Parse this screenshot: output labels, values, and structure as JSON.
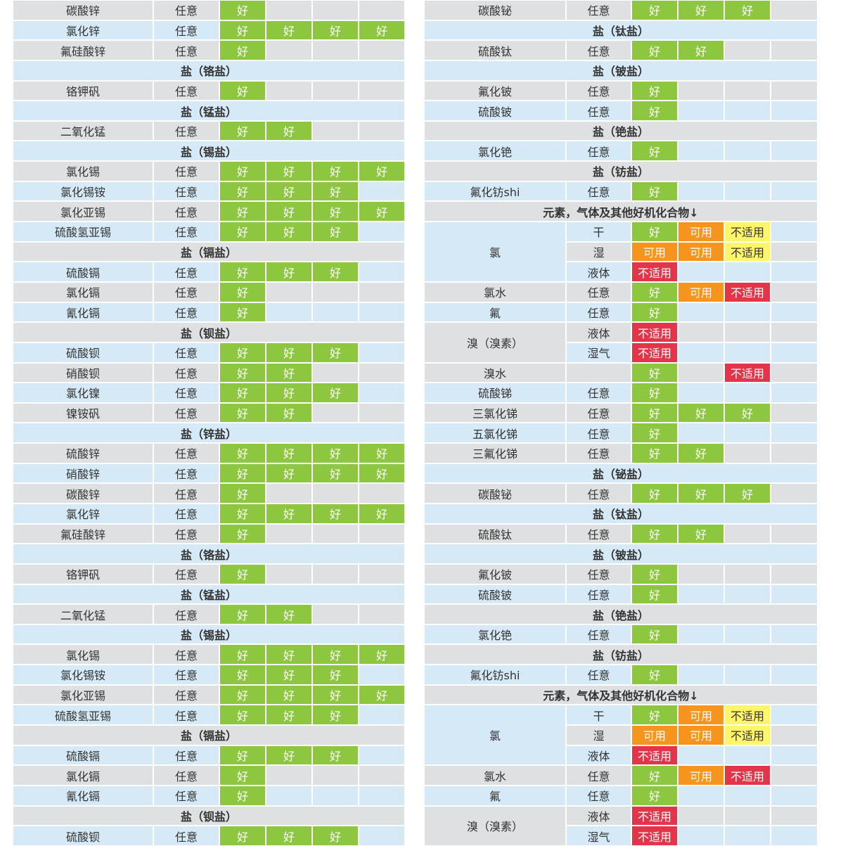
{
  "left": {
    "rows": [
      {
        "name": "碳酸锌",
        "conc": "任意",
        "ratings": [
          [
            "好",
            "#8dc63f"
          ]
        ]
      },
      {
        "name": "氯化锌",
        "conc": "任意",
        "ratings": [
          [
            "好",
            "#8dc63f"
          ],
          [
            "好",
            "#8dc63f"
          ],
          [
            "好",
            "#8dc63f"
          ],
          [
            "好",
            "#8dc63f"
          ]
        ]
      },
      {
        "name": "氟硅酸锌",
        "conc": "任意",
        "ratings": [
          [
            "好",
            "#8dc63f"
          ]
        ]
      },
      {
        "header": "盐（铬盐）"
      },
      {
        "name": "铬钾矾",
        "conc": "任意",
        "ratings": [
          [
            "好",
            "#8dc63f"
          ]
        ]
      },
      {
        "header": "盐（锰盐）"
      },
      {
        "name": "二氧化锰",
        "conc": "任意",
        "ratings": [
          [
            "好",
            "#8dc63f"
          ],
          [
            "好",
            "#8dc63f"
          ]
        ]
      },
      {
        "header": "盐（锡盐）"
      },
      {
        "name": "氯化锡",
        "conc": "任意",
        "ratings": [
          [
            "好",
            "#8dc63f"
          ],
          [
            "好",
            "#8dc63f"
          ],
          [
            "好",
            "#8dc63f"
          ],
          [
            "好",
            "#8dc63f"
          ]
        ]
      },
      {
        "name": "氯化锡铵",
        "conc": "任意",
        "ratings": [
          [
            "好",
            "#8dc63f"
          ],
          [
            "好",
            "#8dc63f"
          ],
          [
            "好",
            "#8dc63f"
          ]
        ]
      },
      {
        "name": "氯化亚锡",
        "conc": "任意",
        "ratings": [
          [
            "好",
            "#8dc63f"
          ],
          [
            "好",
            "#8dc63f"
          ],
          [
            "好",
            "#8dc63f"
          ],
          [
            "好",
            "#8dc63f"
          ]
        ]
      },
      {
        "name": "硫酸氢亚锡",
        "conc": "任意",
        "ratings": [
          [
            "好",
            "#8dc63f"
          ],
          [
            "好",
            "#8dc63f"
          ],
          [
            "好",
            "#8dc63f"
          ]
        ]
      },
      {
        "header": "盐（镉盐）"
      },
      {
        "name": "硫酸镉",
        "conc": "任意",
        "ratings": [
          [
            "好",
            "#8dc63f"
          ],
          [
            "好",
            "#8dc63f"
          ],
          [
            "好",
            "#8dc63f"
          ]
        ]
      },
      {
        "name": "氯化镉",
        "conc": "任意",
        "ratings": [
          [
            "好",
            "#8dc63f"
          ]
        ]
      },
      {
        "name": "氰化镉",
        "conc": "任意",
        "ratings": [
          [
            "好",
            "#8dc63f"
          ]
        ]
      },
      {
        "header": "盐（钡盐）"
      },
      {
        "name": "硫酸钡",
        "conc": "任意",
        "ratings": [
          [
            "好",
            "#8dc63f"
          ],
          [
            "好",
            "#8dc63f"
          ],
          [
            "好",
            "#8dc63f"
          ]
        ]
      },
      {
        "name": "硝酸钡",
        "conc": "任意",
        "ratings": [
          [
            "好",
            "#8dc63f"
          ],
          [
            "好",
            "#8dc63f"
          ]
        ]
      },
      {
        "name": "氯化镍",
        "conc": "任意",
        "ratings": [
          [
            "好",
            "#8dc63f"
          ],
          [
            "好",
            "#8dc63f"
          ],
          [
            "好",
            "#8dc63f"
          ]
        ]
      },
      {
        "name": "镍铵矾",
        "conc": "任意",
        "ratings": [
          [
            "好",
            "#8dc63f"
          ],
          [
            "好",
            "#8dc63f"
          ]
        ]
      },
      {
        "header": "盐（锌盐）"
      },
      {
        "name": "硫酸锌",
        "conc": "任意",
        "ratings": [
          [
            "好",
            "#8dc63f"
          ],
          [
            "好",
            "#8dc63f"
          ],
          [
            "好",
            "#8dc63f"
          ],
          [
            "好",
            "#8dc63f"
          ]
        ]
      },
      {
        "name": "硝酸锌",
        "conc": "任意",
        "ratings": [
          [
            "好",
            "#8dc63f"
          ],
          [
            "好",
            "#8dc63f"
          ],
          [
            "好",
            "#8dc63f"
          ],
          [
            "好",
            "#8dc63f"
          ]
        ]
      },
      {
        "name": "碳酸锌",
        "conc": "任意",
        "ratings": [
          [
            "好",
            "#8dc63f"
          ]
        ]
      },
      {
        "name": "氯化锌",
        "conc": "任意",
        "ratings": [
          [
            "好",
            "#8dc63f"
          ],
          [
            "好",
            "#8dc63f"
          ],
          [
            "好",
            "#8dc63f"
          ],
          [
            "好",
            "#8dc63f"
          ]
        ]
      },
      {
        "name": "氟硅酸锌",
        "conc": "任意",
        "ratings": [
          [
            "好",
            "#8dc63f"
          ]
        ]
      },
      {
        "header": "盐（铬盐）"
      },
      {
        "name": "铬钾矾",
        "conc": "任意",
        "ratings": [
          [
            "好",
            "#8dc63f"
          ]
        ]
      },
      {
        "header": "盐（锰盐）"
      },
      {
        "name": "二氧化锰",
        "conc": "任意",
        "ratings": [
          [
            "好",
            "#8dc63f"
          ],
          [
            "好",
            "#8dc63f"
          ]
        ]
      },
      {
        "header": "盐（锡盐）"
      },
      {
        "name": "氯化锡",
        "conc": "任意",
        "ratings": [
          [
            "好",
            "#8dc63f"
          ],
          [
            "好",
            "#8dc63f"
          ],
          [
            "好",
            "#8dc63f"
          ],
          [
            "好",
            "#8dc63f"
          ]
        ]
      },
      {
        "name": "氯化锡铵",
        "conc": "任意",
        "ratings": [
          [
            "好",
            "#8dc63f"
          ],
          [
            "好",
            "#8dc63f"
          ],
          [
            "好",
            "#8dc63f"
          ]
        ]
      },
      {
        "name": "氯化亚锡",
        "conc": "任意",
        "ratings": [
          [
            "好",
            "#8dc63f"
          ],
          [
            "好",
            "#8dc63f"
          ],
          [
            "好",
            "#8dc63f"
          ],
          [
            "好",
            "#8dc63f"
          ]
        ]
      },
      {
        "name": "硫酸氢亚锡",
        "conc": "任意",
        "ratings": [
          [
            "好",
            "#8dc63f"
          ],
          [
            "好",
            "#8dc63f"
          ],
          [
            "好",
            "#8dc63f"
          ]
        ]
      },
      {
        "header": "盐（镉盐）"
      },
      {
        "name": "硫酸镉",
        "conc": "任意",
        "ratings": [
          [
            "好",
            "#8dc63f"
          ],
          [
            "好",
            "#8dc63f"
          ],
          [
            "好",
            "#8dc63f"
          ]
        ]
      },
      {
        "name": "氯化镉",
        "conc": "任意",
        "ratings": [
          [
            "好",
            "#8dc63f"
          ]
        ]
      },
      {
        "name": "氰化镉",
        "conc": "任意",
        "ratings": [
          [
            "好",
            "#8dc63f"
          ]
        ]
      },
      {
        "header": "盐（钡盐）"
      },
      {
        "name": "硫酸钡",
        "conc": "任意",
        "ratings": [
          [
            "好",
            "#8dc63f"
          ],
          [
            "好",
            "#8dc63f"
          ],
          [
            "好",
            "#8dc63f"
          ]
        ]
      }
    ]
  },
  "right": {
    "rows": [
      {
        "name": "碳酸铋",
        "conc": "任意",
        "ratings": [
          [
            "好",
            "#8dc63f"
          ],
          [
            "好",
            "#8dc63f"
          ],
          [
            "好",
            "#8dc63f"
          ]
        ]
      },
      {
        "header": "盐（钛盐）"
      },
      {
        "name": "硫酸钛",
        "conc": "任意",
        "ratings": [
          [
            "好",
            "#8dc63f"
          ],
          [
            "好",
            "#8dc63f"
          ]
        ]
      },
      {
        "header": "盐（铍盐）"
      },
      {
        "name": "氟化铍",
        "conc": "任意",
        "ratings": [
          [
            "好",
            "#8dc63f"
          ]
        ]
      },
      {
        "name": "硫酸铍",
        "conc": "任意",
        "ratings": [
          [
            "好",
            "#8dc63f"
          ]
        ]
      },
      {
        "header": "盐（铯盐）"
      },
      {
        "name": "氯化铯",
        "conc": "任意",
        "ratings": [
          [
            "好",
            "#8dc63f"
          ]
        ]
      },
      {
        "header": "盐（钫盐）"
      },
      {
        "name": "氟化钫shi",
        "conc": "任意",
        "ratings": [
          [
            "好",
            "#8dc63f"
          ]
        ]
      },
      {
        "header": "元素，气体及其他好机化合物↓"
      },
      {
        "name": "氯",
        "conc": "干",
        "ratings": [
          [
            "好",
            "#8dc63f"
          ],
          [
            "可用",
            "#f7941d"
          ],
          [
            "不适用",
            "#fff568"
          ]
        ]
      },
      {
        "conc": "湿",
        "ratings": [
          [
            "可用",
            "#f7941d"
          ],
          [
            "可用",
            "#f7941d"
          ],
          [
            "不适用",
            "#fff568"
          ]
        ]
      },
      {
        "conc": "液体",
        "ratings": [
          [
            "不适用",
            "#e2354a"
          ]
        ]
      },
      {
        "name": "氯水",
        "conc": "任意",
        "ratings": [
          [
            "好",
            "#8dc63f"
          ],
          [
            "可用",
            "#f7941d"
          ],
          [
            "不适用",
            "#e2354a"
          ]
        ]
      },
      {
        "name": "氟",
        "conc": "任意",
        "ratings": [
          [
            "好",
            "#8dc63f"
          ]
        ]
      },
      {
        "name": "溴（溴素）",
        "conc": "液体",
        "ratings": [
          [
            "不适用",
            "#e2354a"
          ]
        ]
      },
      {
        "conc": "湿气",
        "ratings": [
          [
            "不适用",
            "#e2354a"
          ]
        ]
      },
      {
        "name": "溴水",
        "conc": null,
        "ratings": [
          [
            "好",
            "#8dc63f"
          ],
          null,
          [
            "不适用",
            "#e2354a"
          ]
        ]
      },
      {
        "name": "硫酸锑",
        "conc": "任意",
        "ratings": [
          [
            "好",
            "#8dc63f"
          ]
        ]
      },
      {
        "name": "三氯化锑",
        "conc": "任意",
        "ratings": [
          [
            "好",
            "#8dc63f"
          ],
          [
            "好",
            "#8dc63f"
          ],
          [
            "好",
            "#8dc63f"
          ]
        ]
      },
      {
        "name": "五氯化锑",
        "conc": "任意",
        "ratings": [
          [
            "好",
            "#8dc63f"
          ]
        ]
      },
      {
        "name": "三氟化锑",
        "conc": "任意",
        "ratings": [
          [
            "好",
            "#8dc63f"
          ],
          [
            "好",
            "#8dc63f"
          ]
        ]
      },
      {
        "header": "盐（铋盐）"
      },
      {
        "name": "碳酸铋",
        "conc": "任意",
        "ratings": [
          [
            "好",
            "#8dc63f"
          ],
          [
            "好",
            "#8dc63f"
          ],
          [
            "好",
            "#8dc63f"
          ]
        ]
      },
      {
        "header": "盐（钛盐）"
      },
      {
        "name": "硫酸钛",
        "conc": "任意",
        "ratings": [
          [
            "好",
            "#8dc63f"
          ],
          [
            "好",
            "#8dc63f"
          ]
        ]
      },
      {
        "header": "盐（铍盐）"
      },
      {
        "name": "氟化铍",
        "conc": "任意",
        "ratings": [
          [
            "好",
            "#8dc63f"
          ]
        ]
      },
      {
        "name": "硫酸铍",
        "conc": "任意",
        "ratings": [
          [
            "好",
            "#8dc63f"
          ]
        ]
      },
      {
        "header": "盐（铯盐）"
      },
      {
        "name": "氯化铯",
        "conc": "任意",
        "ratings": [
          [
            "好",
            "#8dc63f"
          ]
        ]
      },
      {
        "header": "盐（钫盐）"
      },
      {
        "name": "氟化钫shi",
        "conc": "任意",
        "ratings": [
          [
            "好",
            "#8dc63f"
          ]
        ]
      },
      {
        "header": "元素，气体及其他好机化合物↓"
      },
      {
        "name": "氯",
        "conc": "干",
        "ratings": [
          [
            "好",
            "#8dc63f"
          ],
          [
            "可用",
            "#f7941d"
          ],
          [
            "不适用",
            "#fff568"
          ]
        ]
      },
      {
        "conc": "湿",
        "ratings": [
          [
            "可用",
            "#f7941d"
          ],
          [
            "可用",
            "#f7941d"
          ],
          [
            "不适用",
            "#fff568"
          ]
        ]
      },
      {
        "conc": "液体",
        "ratings": [
          [
            "不适用",
            "#e2354a"
          ]
        ]
      },
      {
        "name": "氯水",
        "conc": "任意",
        "ratings": [
          [
            "好",
            "#8dc63f"
          ],
          [
            "可用",
            "#f7941d"
          ],
          [
            "不适用",
            "#e2354a"
          ]
        ]
      },
      {
        "name": "氟",
        "conc": "任意",
        "ratings": [
          [
            "好",
            "#8dc63f"
          ]
        ]
      },
      {
        "name": "溴（溴素）",
        "conc": "液体",
        "ratings": [
          [
            "不适用",
            "#e2354a"
          ]
        ]
      },
      {
        "conc": "湿气",
        "ratings": [
          [
            "不适用",
            "#e2354a"
          ]
        ]
      }
    ]
  }
}
